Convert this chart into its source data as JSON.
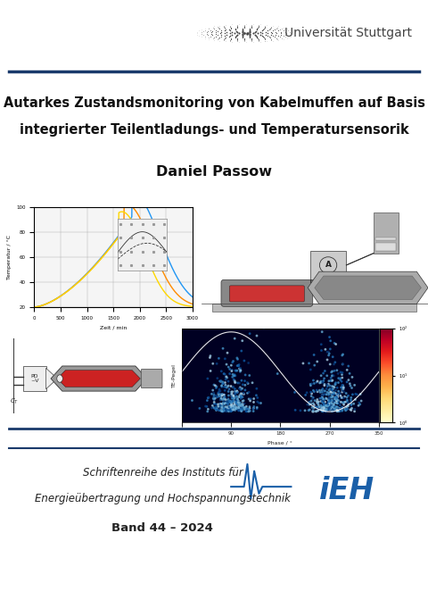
{
  "title_line1": "Autarkes Zustandsmonitoring von Kabelmuffen auf Basis",
  "title_line2": "integrierter Teilentladungs- und Temperatursensorik",
  "author": "Daniel Passow",
  "uni_name": "Universität Stuttgart",
  "series_line1": "Schriftenreihe des Instituts für",
  "series_line2": "Energieübertragung und Hochspannungstechnik",
  "band": "Band 44 – 2024",
  "white": "#ffffff",
  "blue_dark": "#1a3a6b",
  "blue_ieh": "#1a5fa8",
  "header_bg": "#e8e8e8",
  "fig_width": 4.8,
  "fig_height": 6.81,
  "dpi": 100
}
